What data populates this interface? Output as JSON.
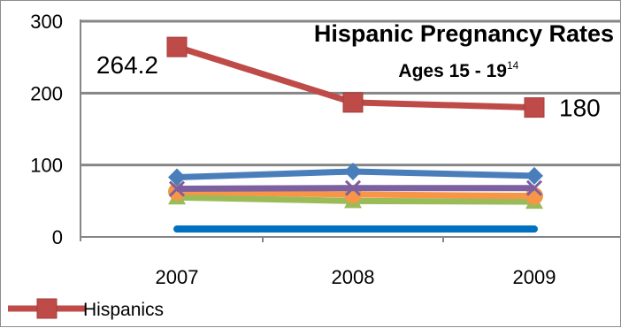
{
  "chart_data": {
    "type": "line",
    "title": "Hispanic Pregnancy Rates",
    "subtitle": "Ages 15 - 19",
    "subtitle_superscript": "14",
    "categories": [
      "2007",
      "2008",
      "2009"
    ],
    "ylim": [
      0,
      300
    ],
    "yticks": [
      "0",
      "100",
      "200",
      "300"
    ],
    "grid": true,
    "legend": {
      "position": "bottom-left",
      "entries": [
        "Hispanics"
      ]
    },
    "series": [
      {
        "name": "Hispanics",
        "values": [
          264.2,
          187,
          180
        ],
        "color": "#be4b48",
        "marker": "square",
        "labels": [
          "264.2",
          "",
          "180"
        ]
      },
      {
        "values": [
          83,
          91,
          85
        ],
        "color": "#4a7ebb",
        "marker": "diamond",
        "labels": [
          "",
          "",
          ""
        ]
      },
      {
        "values": [
          67,
          68,
          68
        ],
        "color": "#7d60a0",
        "marker": "x",
        "labels": [
          "",
          "",
          ""
        ]
      },
      {
        "values": [
          63,
          59,
          57
        ],
        "color": "#f79646",
        "marker": "circle",
        "labels": [
          "",
          "",
          ""
        ]
      },
      {
        "values": [
          55,
          50,
          49
        ],
        "color": "#9bbb59",
        "marker": "triangle",
        "labels": [
          "",
          "",
          ""
        ]
      },
      {
        "values": [
          11,
          11,
          11
        ],
        "color": "#0070c0",
        "marker": "none",
        "labels": [
          "",
          "",
          ""
        ]
      }
    ]
  }
}
